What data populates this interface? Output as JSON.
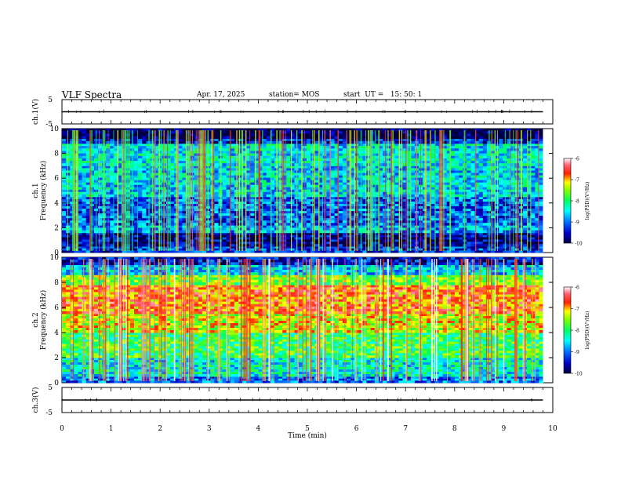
{
  "header": {
    "title": "VLF Spectra",
    "date": "Apr. 17, 2025",
    "station": "station= MOS",
    "start": "start  UT =   15: 50: 1"
  },
  "chart_data": [
    {
      "type": "line",
      "ylabel": "ch.1(V)",
      "x_range": [
        0,
        10
      ],
      "ylim": [
        -5,
        5
      ],
      "yticks": [
        "5",
        "-5"
      ],
      "series": [
        {
          "x": [
            0,
            9.8
          ],
          "values": [
            0,
            0
          ]
        }
      ]
    },
    {
      "type": "heatmap",
      "ylabel_line1": "ch.1",
      "ylabel_line2": "Frequency (kHz)",
      "ylim": [
        0,
        10
      ],
      "yticks": [
        "0",
        "2",
        "4",
        "6",
        "8",
        "10"
      ],
      "x_range": [
        0,
        9.8
      ],
      "colorbar": {
        "label": "log(PSD)(V²/Hz)",
        "ticks": [
          "-6",
          "-7",
          "-8",
          "-9",
          "-10"
        ],
        "range": [
          -10,
          -6
        ]
      },
      "row_log_psd": [
        {
          "f": [
            0,
            0.5
          ],
          "v": -9.3
        },
        {
          "f": [
            0.5,
            1.6
          ],
          "v": -9.7
        },
        {
          "f": [
            1.6,
            2.2
          ],
          "v": -8.8
        },
        {
          "f": [
            2.2,
            4.5
          ],
          "v": -9.1
        },
        {
          "f": [
            4.5,
            7.0
          ],
          "v": -8.6
        },
        {
          "f": [
            7.0,
            8.8
          ],
          "v": -8.5
        },
        {
          "f": [
            8.8,
            9.2
          ],
          "v": -9.4
        },
        {
          "f": [
            9.2,
            10
          ],
          "v": -10
        }
      ]
    },
    {
      "type": "heatmap",
      "ylabel_line1": "ch.2",
      "ylabel_line2": "Frequency (kHz)",
      "ylim": [
        0,
        10
      ],
      "yticks": [
        "0",
        "2",
        "4",
        "6",
        "8",
        "10"
      ],
      "x_range": [
        0,
        9.8
      ],
      "colorbar": {
        "label": "log(PSD)(V²/Hz)",
        "ticks": [
          "-6",
          "-7",
          "-8",
          "-9",
          "-10"
        ],
        "range": [
          -10,
          -6
        ]
      },
      "row_log_psd": [
        {
          "f": [
            0,
            0.5
          ],
          "v": -9.0
        },
        {
          "f": [
            0.5,
            2.0
          ],
          "v": -8.4
        },
        {
          "f": [
            2.0,
            4.0
          ],
          "v": -7.9
        },
        {
          "f": [
            4.0,
            5.5
          ],
          "v": -7.3
        },
        {
          "f": [
            5.5,
            7.8
          ],
          "v": -6.8
        },
        {
          "f": [
            7.8,
            8.6
          ],
          "v": -7.6
        },
        {
          "f": [
            8.6,
            9.4
          ],
          "v": -8.6
        },
        {
          "f": [
            9.4,
            10
          ],
          "v": -9.5
        }
      ]
    },
    {
      "type": "line",
      "ylabel": "ch.3(V)",
      "x_range": [
        0,
        10
      ],
      "ylim": [
        -5,
        5
      ],
      "yticks": [
        "5",
        "-5"
      ],
      "series": [
        {
          "x": [
            0,
            9.8
          ],
          "values": [
            0,
            0
          ]
        }
      ],
      "xlabel": "Time  (min)",
      "xticks": [
        "0",
        "1",
        "2",
        "3",
        "4",
        "5",
        "6",
        "7",
        "8",
        "9",
        "10"
      ]
    }
  ]
}
